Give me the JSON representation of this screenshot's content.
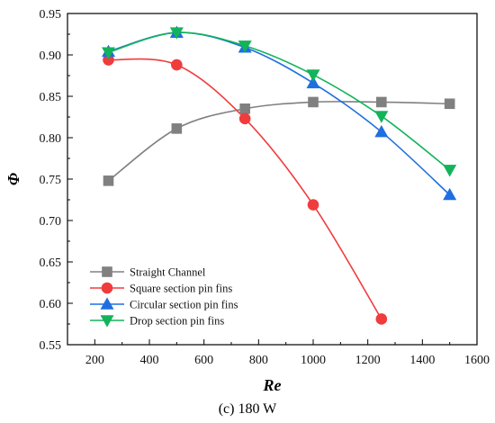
{
  "caption": "(c) 180 W",
  "chart_data": {
    "type": "line",
    "xlabel": "Re",
    "ylabel": "Φ",
    "xlim": [
      100,
      1600
    ],
    "ylim": [
      0.55,
      0.95
    ],
    "x_ticks": [
      200,
      400,
      600,
      800,
      1000,
      1200,
      1400,
      1600
    ],
    "y_ticks": [
      0.55,
      0.6,
      0.65,
      0.7,
      0.75,
      0.8,
      0.85,
      0.9,
      0.95
    ],
    "x_tick_labels": [
      "200",
      "400",
      "600",
      "800",
      "1000",
      "1200",
      "1400",
      "1600"
    ],
    "y_tick_labels": [
      "0.55",
      "0.60",
      "0.65",
      "0.70",
      "0.75",
      "0.80",
      "0.85",
      "0.90",
      "0.95"
    ],
    "grid": false,
    "legend_position": "bottom-left",
    "series": [
      {
        "name": "Straight Channel",
        "marker": "square",
        "color": "#808080",
        "x": [
          250,
          500,
          750,
          1000,
          1250,
          1500
        ],
        "y": [
          0.748,
          0.811,
          0.835,
          0.843,
          0.843,
          0.841
        ]
      },
      {
        "name": "Square section pin fins",
        "marker": "circle",
        "color": "#f03c3c",
        "x": [
          250,
          500,
          750,
          1000,
          1250
        ],
        "y": [
          0.894,
          0.888,
          0.823,
          0.719,
          0.581
        ]
      },
      {
        "name": "Circular section pin fins",
        "marker": "triangle-up",
        "color": "#1f6fe0",
        "x": [
          250,
          500,
          750,
          1000,
          1250,
          1500
        ],
        "y": [
          0.904,
          0.927,
          0.909,
          0.866,
          0.807,
          0.731
        ]
      },
      {
        "name": "Drop section pin fins",
        "marker": "triangle-down",
        "color": "#13b35a",
        "x": [
          250,
          500,
          750,
          1000,
          1250,
          1500
        ],
        "y": [
          0.903,
          0.927,
          0.911,
          0.876,
          0.826,
          0.761
        ]
      }
    ]
  }
}
